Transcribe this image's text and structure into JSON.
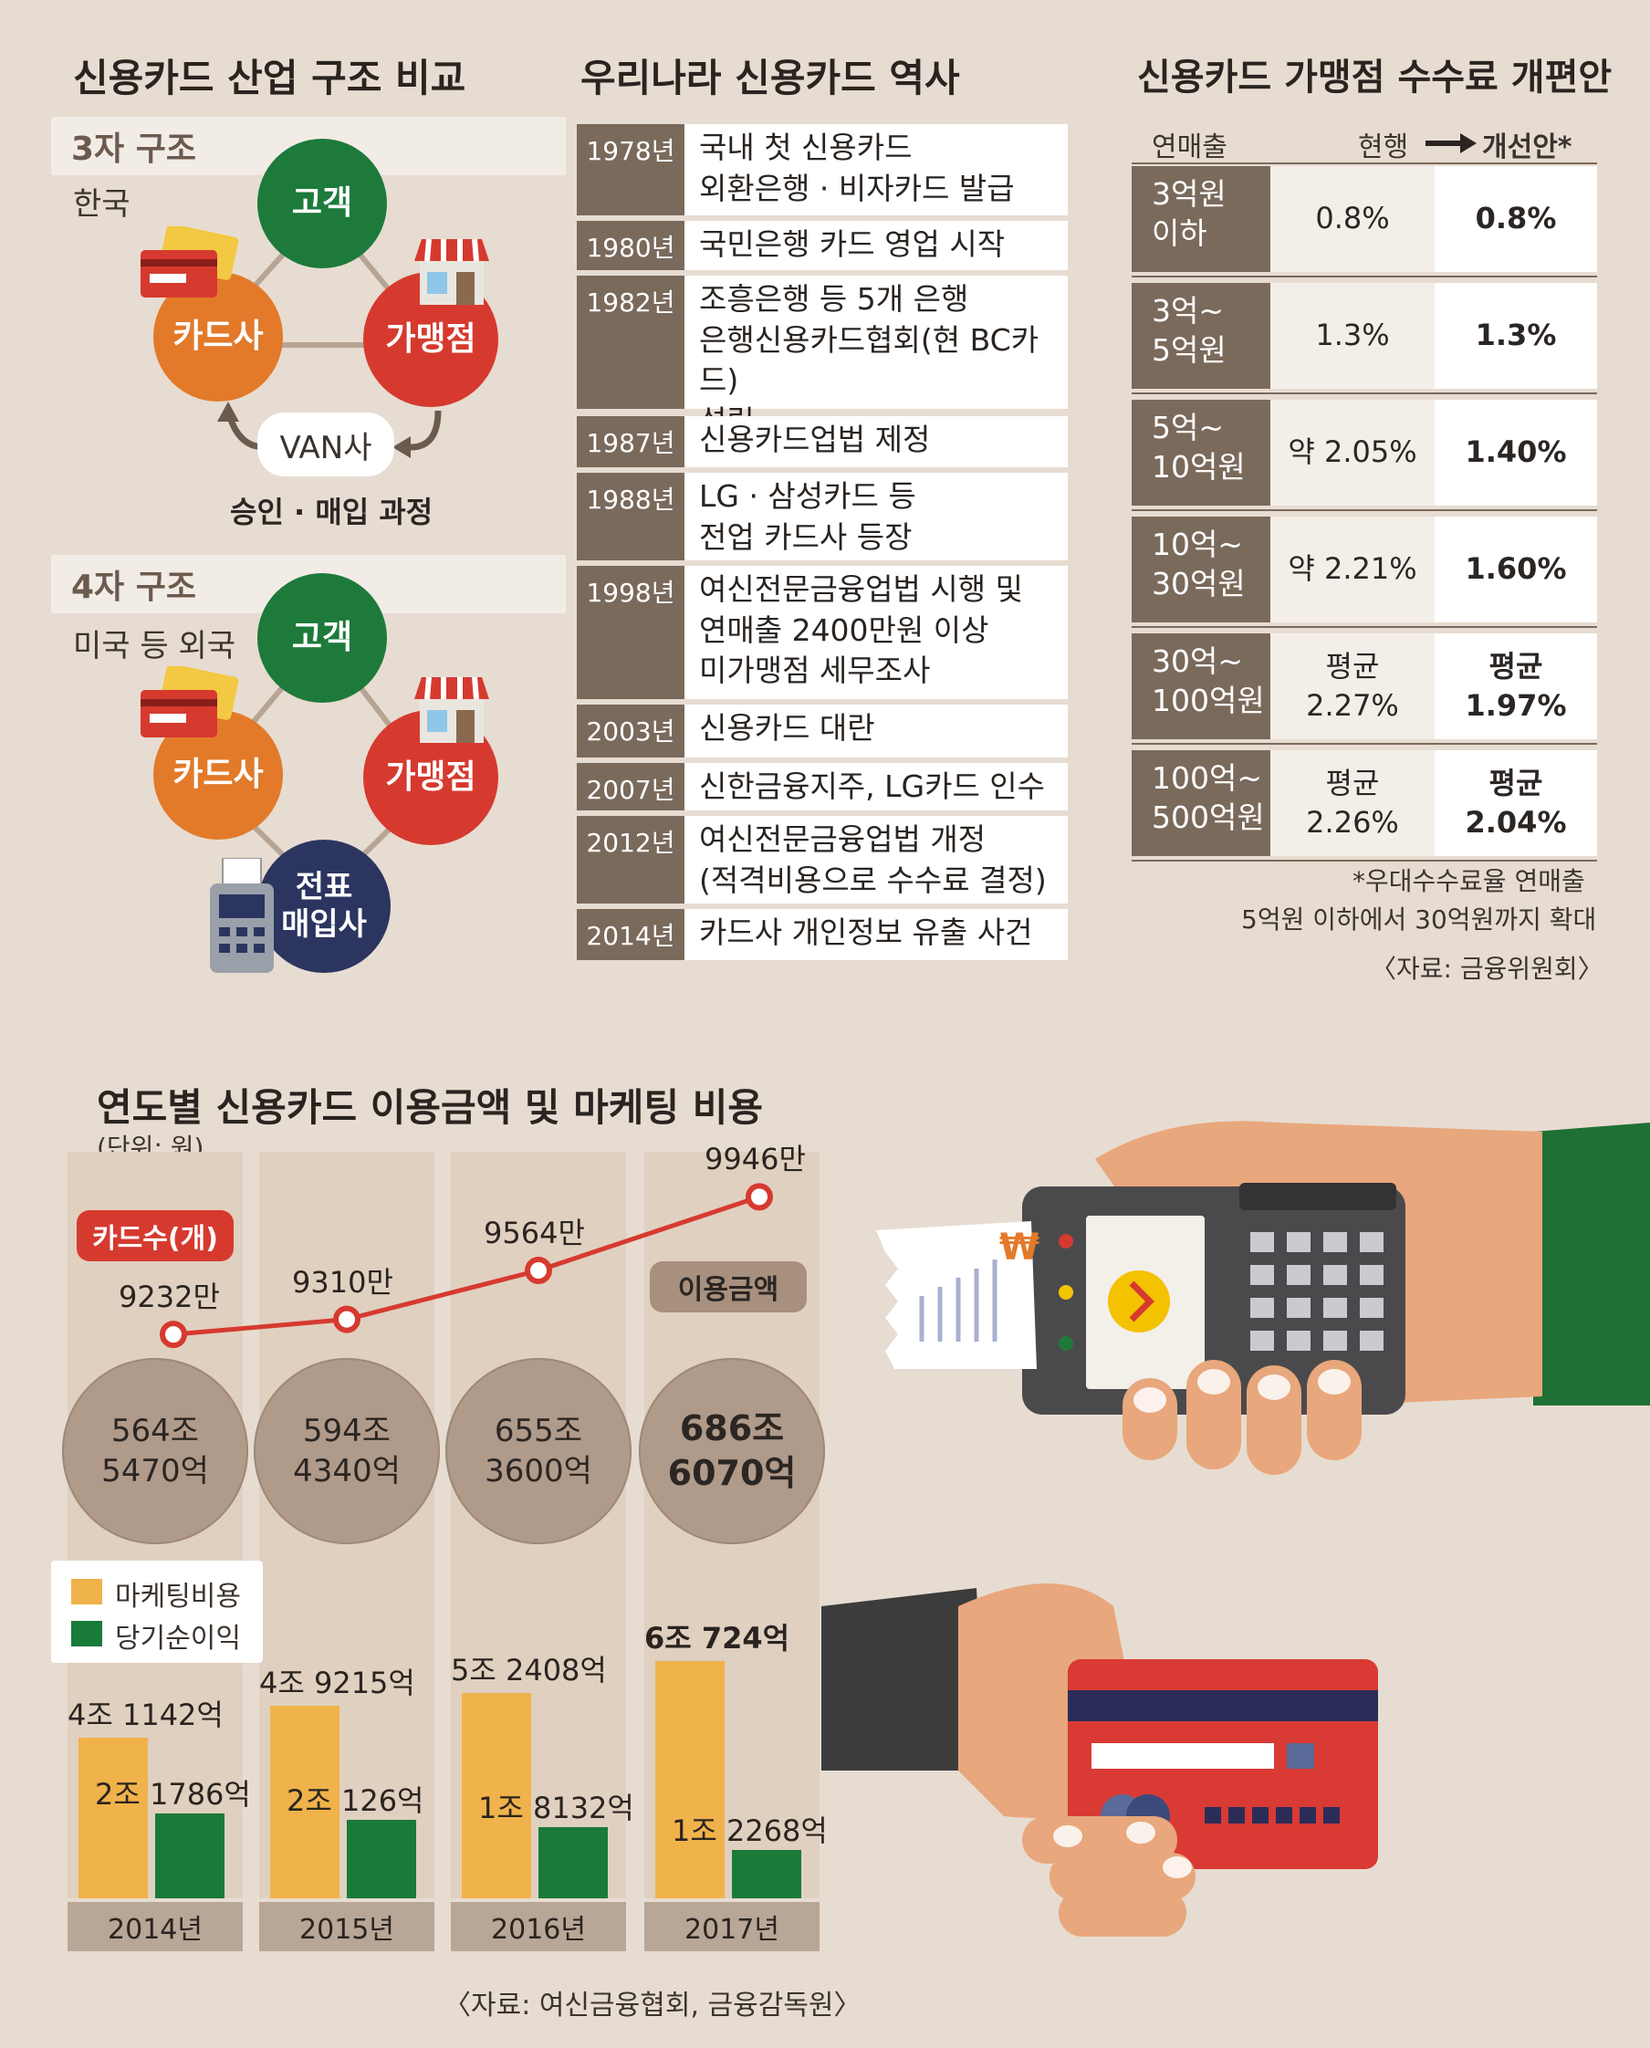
{
  "colors": {
    "bg": "#e7dcd1",
    "green": "#1d7a3b",
    "orange": "#e27a2a",
    "red": "#d63a2f",
    "navy": "#2b3560",
    "brown": "#7a6a5c",
    "bar_marketing": "#f0b24a",
    "bar_profit": "#1a7a3a",
    "line": "#d63a2f"
  },
  "structure": {
    "title": "신용카드 산업 구조 비교",
    "three": {
      "label": "3자 구조",
      "region": "한국",
      "customer": "고객",
      "card_company": "카드사",
      "merchant": "가맹점",
      "van": "VAN사",
      "process": "승인 · 매입 과정"
    },
    "four": {
      "label": "4자 구조",
      "region": "미국 등 외국",
      "customer": "고객",
      "card_company": "카드사",
      "merchant": "가맹점",
      "acquirer_line1": "전표",
      "acquirer_line2": "매입사"
    }
  },
  "history": {
    "title": "우리나라 신용카드 역사",
    "rows": [
      {
        "year": "1978년",
        "lines": [
          "국내 첫 신용카드",
          "외환은행 · 비자카드 발급"
        ]
      },
      {
        "year": "1980년",
        "lines": [
          "국민은행 카드 영업 시작"
        ]
      },
      {
        "year": "1982년",
        "lines": [
          "조흥은행 등 5개 은행",
          "은행신용카드협회(현 BC카드)",
          "설립"
        ]
      },
      {
        "year": "1987년",
        "lines": [
          "신용카드업법 제정"
        ]
      },
      {
        "year": "1988년",
        "lines": [
          "LG · 삼성카드 등",
          "전업 카드사 등장"
        ]
      },
      {
        "year": "1998년",
        "lines": [
          "여신전문금융업법 시행 및",
          "연매출 2400만원 이상",
          "미가맹점 세무조사"
        ]
      },
      {
        "year": "2003년",
        "lines": [
          "신용카드 대란"
        ]
      },
      {
        "year": "2007년",
        "lines": [
          "신한금융지주, LG카드 인수"
        ]
      },
      {
        "year": "2012년",
        "lines": [
          "여신전문금융업법 개정",
          "(적격비용으로 수수료 결정)"
        ]
      },
      {
        "year": "2014년",
        "lines": [
          "카드사 개인정보 유출 사건"
        ]
      }
    ]
  },
  "fees": {
    "title": "신용카드 가맹점 수수료 개편안",
    "col_sales": "연매출",
    "col_current": "현행",
    "col_new": "개선안*",
    "rows": [
      {
        "l1": "3억원",
        "l2": "이하",
        "cur1": "0.8%",
        "cur2": "",
        "new1": "0.8%",
        "new2": ""
      },
      {
        "l1": "3억~",
        "l2": "5억원",
        "cur1": "1.3%",
        "cur2": "",
        "new1": "1.3%",
        "new2": ""
      },
      {
        "l1": "5억~",
        "l2": "10억원",
        "cur1": "약 2.05%",
        "cur2": "",
        "new1": "1.40%",
        "new2": ""
      },
      {
        "l1": "10억~",
        "l2": "30억원",
        "cur1": "약 2.21%",
        "cur2": "",
        "new1": "1.60%",
        "new2": ""
      },
      {
        "l1": "30억~",
        "l2": "100억원",
        "cur1": "평균",
        "cur2": "2.27%",
        "new1": "평균",
        "new2": "1.97%"
      },
      {
        "l1": "100억~",
        "l2": "500억원",
        "cur1": "평균",
        "cur2": "2.26%",
        "new1": "평균",
        "new2": "2.04%"
      }
    ],
    "footnote1": "*우대수수료율 연매출",
    "footnote2": "5억원 이하에서 30억원까지 확대",
    "source": "〈자료: 금융위원회〉"
  },
  "chart_data": {
    "type": "bar",
    "title": "연도별 신용카드 이용금액 및 마케팅 비용",
    "unit": "(단위: 원)",
    "categories": [
      "2014년",
      "2015년",
      "2016년",
      "2017년"
    ],
    "series": [
      {
        "name": "마케팅비용",
        "values": [
          41142,
          49215,
          52408,
          60724
        ],
        "labels": [
          "4조 1142억",
          "4조 9215억",
          "5조 2408억",
          "6조 724억"
        ]
      },
      {
        "name": "당기순이익",
        "values": [
          21786,
          20126,
          18132,
          12268
        ],
        "labels": [
          "2조 1786억",
          "2조 126억",
          "1조 8132억",
          "1조 2268억"
        ]
      }
    ],
    "line": {
      "name": "카드수(개)",
      "values": [
        9232,
        9310,
        9564,
        9946
      ],
      "labels": [
        "9232만",
        "9310만",
        "9564만",
        "9946만"
      ]
    },
    "usage": {
      "name": "이용금액",
      "labels": [
        [
          "564조",
          "5470억"
        ],
        [
          "594조",
          "4340억"
        ],
        [
          "655조",
          "3600억"
        ],
        [
          "686조",
          "6070억"
        ]
      ]
    },
    "source": "〈자료: 여신금융협회, 금융감독원〉"
  }
}
